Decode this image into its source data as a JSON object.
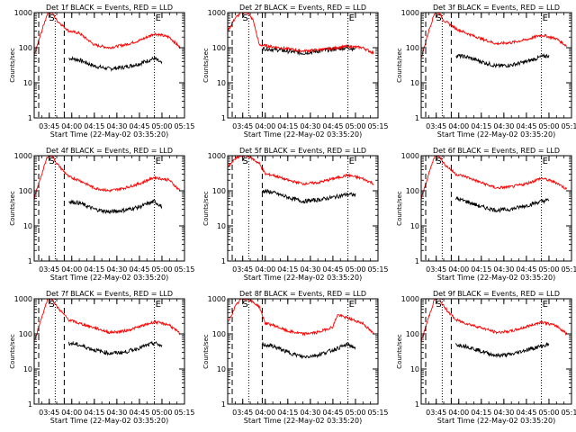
{
  "figure": {
    "panel_title_suffix": "BLACK = Events, RED = LLD",
    "xlabel": "Start Time (22-May-02 03:35:20)",
    "ylabel": "Counts/sec",
    "x_ticks": [
      "03:45",
      "04:00",
      "04:15",
      "04:30",
      "04:45",
      "05:00",
      "05:15"
    ],
    "y_ticks": [
      "1",
      "10",
      "100",
      "1000"
    ],
    "markers": {
      "start": "S",
      "end": "E"
    },
    "colors": {
      "events": "#000000",
      "lld": "#ff0000",
      "axes": "#000000"
    }
  },
  "chart_data": [
    {
      "type": "line",
      "title": "Det 1f BLACK = Events, RED = LLD",
      "detector": "Det 1f",
      "xlabel": "Start Time (22-May-02 03:35:20)",
      "ylabel": "Counts/sec",
      "yscale": "log",
      "xlim": [
        "03:35",
        "05:15"
      ],
      "ylim": [
        1,
        1000
      ],
      "dashed_vlines": [
        "03:38",
        "03:55"
      ],
      "dotted_vlines": [
        "03:49",
        "04:55"
      ],
      "series": [
        {
          "name": "Events",
          "color": "#000000",
          "x": [
            "03:58",
            "04:05",
            "04:15",
            "04:25",
            "04:35",
            "04:45",
            "04:55",
            "05:00"
          ],
          "y": [
            50,
            45,
            30,
            25,
            28,
            35,
            50,
            35
          ]
        },
        {
          "name": "LLD",
          "color": "#ff0000",
          "x": [
            "03:35",
            "03:40",
            "03:44",
            "03:47",
            "03:50",
            "03:58",
            "04:05",
            "04:15",
            "04:25",
            "04:35",
            "04:45",
            "04:55",
            "05:05",
            "05:12"
          ],
          "y": [
            60,
            300,
            1000,
            1000,
            600,
            300,
            260,
            120,
            100,
            120,
            160,
            250,
            200,
            100
          ]
        }
      ]
    },
    {
      "type": "line",
      "title": "Det 2f BLACK = Events, RED = LLD",
      "detector": "Det 2f",
      "xlabel": "Start Time (22-May-02 03:35:20)",
      "ylabel": "Counts/sec",
      "yscale": "log",
      "xlim": [
        "03:35",
        "05:15"
      ],
      "ylim": [
        1,
        1000
      ],
      "dashed_vlines": [
        "03:38",
        "03:58"
      ],
      "dotted_vlines": [
        "03:49",
        "04:55"
      ],
      "series": [
        {
          "name": "Events",
          "color": "#000000",
          "x": [
            "03:58",
            "04:10",
            "04:25",
            "04:40",
            "04:55",
            "05:00"
          ],
          "y": [
            95,
            85,
            70,
            85,
            100,
            90
          ]
        },
        {
          "name": "LLD",
          "color": "#ff0000",
          "x": [
            "03:35",
            "03:40",
            "03:44",
            "03:48",
            "03:52",
            "03:56",
            "04:10",
            "04:25",
            "04:40",
            "04:55",
            "05:05",
            "05:12"
          ],
          "y": [
            300,
            700,
            1000,
            1000,
            600,
            120,
            100,
            80,
            90,
            110,
            100,
            70
          ]
        }
      ]
    },
    {
      "type": "line",
      "title": "Det 3f BLACK = Events, RED = LLD",
      "detector": "Det 3f",
      "xlabel": "Start Time (22-May-02 03:35:20)",
      "ylabel": "Counts/sec",
      "yscale": "log",
      "xlim": [
        "03:35",
        "05:15"
      ],
      "ylim": [
        1,
        1000
      ],
      "dashed_vlines": [
        "03:38",
        "03:55"
      ],
      "dotted_vlines": [
        "03:49",
        "04:55"
      ],
      "series": [
        {
          "name": "Events",
          "color": "#000000",
          "x": [
            "03:58",
            "04:05",
            "04:15",
            "04:25",
            "04:35",
            "04:45",
            "04:55",
            "05:00"
          ],
          "y": [
            60,
            55,
            40,
            30,
            32,
            40,
            55,
            60
          ]
        },
        {
          "name": "LLD",
          "color": "#ff0000",
          "x": [
            "03:35",
            "03:40",
            "03:44",
            "03:47",
            "03:50",
            "03:58",
            "04:05",
            "04:15",
            "04:25",
            "04:35",
            "04:45",
            "04:55",
            "05:05",
            "05:12"
          ],
          "y": [
            50,
            300,
            1000,
            1000,
            600,
            350,
            260,
            180,
            130,
            140,
            170,
            230,
            180,
            110
          ]
        }
      ]
    },
    {
      "type": "line",
      "title": "Det 4f BLACK = Events, RED = LLD",
      "detector": "Det 4f",
      "xlabel": "Start Time (22-May-02 03:35:20)",
      "ylabel": "Counts/sec",
      "yscale": "log",
      "xlim": [
        "03:35",
        "05:15"
      ],
      "ylim": [
        1,
        1000
      ],
      "dashed_vlines": [
        "03:38",
        "03:55"
      ],
      "dotted_vlines": [
        "03:49",
        "04:55"
      ],
      "series": [
        {
          "name": "Events",
          "color": "#000000",
          "x": [
            "03:58",
            "04:05",
            "04:15",
            "04:25",
            "04:35",
            "04:45",
            "04:55",
            "05:00"
          ],
          "y": [
            50,
            45,
            30,
            25,
            28,
            35,
            50,
            35
          ]
        },
        {
          "name": "LLD",
          "color": "#ff0000",
          "x": [
            "03:35",
            "03:40",
            "03:44",
            "03:47",
            "03:50",
            "03:58",
            "04:05",
            "04:15",
            "04:25",
            "04:35",
            "04:45",
            "04:55",
            "05:05",
            "05:12"
          ],
          "y": [
            60,
            300,
            1000,
            1000,
            600,
            250,
            200,
            120,
            100,
            120,
            160,
            240,
            200,
            100
          ]
        }
      ]
    },
    {
      "type": "line",
      "title": "Det 5f BLACK = Events, RED = LLD",
      "detector": "Det 5f",
      "xlabel": "Start Time (22-May-02 03:35:20)",
      "ylabel": "Counts/sec",
      "yscale": "log",
      "xlim": [
        "03:35",
        "05:15"
      ],
      "ylim": [
        1,
        1000
      ],
      "dashed_vlines": [
        "03:38",
        "03:58"
      ],
      "dotted_vlines": [
        "03:49",
        "04:55"
      ],
      "series": [
        {
          "name": "Events",
          "color": "#000000",
          "x": [
            "03:58",
            "04:05",
            "04:15",
            "04:25",
            "04:35",
            "04:45",
            "04:55",
            "05:00"
          ],
          "y": [
            100,
            90,
            65,
            50,
            55,
            65,
            80,
            75
          ]
        },
        {
          "name": "LLD",
          "color": "#ff0000",
          "x": [
            "03:35",
            "03:40",
            "03:44",
            "03:47",
            "03:50",
            "03:56",
            "04:00",
            "04:05",
            "04:15",
            "04:25",
            "04:35",
            "04:45",
            "04:55",
            "05:05",
            "05:12"
          ],
          "y": [
            500,
            800,
            1000,
            1000,
            900,
            600,
            300,
            280,
            200,
            160,
            170,
            220,
            280,
            220,
            160
          ]
        }
      ]
    },
    {
      "type": "line",
      "title": "Det 6f BLACK = Events, RED = LLD",
      "detector": "Det 6f",
      "xlabel": "Start Time (22-May-02 03:35:20)",
      "ylabel": "Counts/sec",
      "yscale": "log",
      "xlim": [
        "03:35",
        "05:15"
      ],
      "ylim": [
        1,
        1000
      ],
      "dashed_vlines": [
        "03:38",
        "03:55"
      ],
      "dotted_vlines": [
        "03:49",
        "04:55"
      ],
      "series": [
        {
          "name": "Events",
          "color": "#000000",
          "x": [
            "03:58",
            "04:05",
            "04:15",
            "04:25",
            "04:35",
            "04:45",
            "04:55",
            "05:00"
          ],
          "y": [
            60,
            50,
            35,
            28,
            30,
            38,
            50,
            55
          ]
        },
        {
          "name": "LLD",
          "color": "#ff0000",
          "x": [
            "03:35",
            "03:40",
            "03:44",
            "03:47",
            "03:50",
            "03:58",
            "04:05",
            "04:15",
            "04:25",
            "04:35",
            "04:45",
            "04:55",
            "05:05",
            "05:12"
          ],
          "y": [
            60,
            300,
            1000,
            1000,
            600,
            300,
            250,
            170,
            120,
            130,
            160,
            230,
            170,
            110
          ]
        }
      ]
    },
    {
      "type": "line",
      "title": "Det 7f BLACK = Events, RED = LLD",
      "detector": "Det 7f",
      "xlabel": "Start Time (22-May-02 03:35:20)",
      "ylabel": "Counts/sec",
      "yscale": "log",
      "xlim": [
        "03:35",
        "05:15"
      ],
      "ylim": [
        1,
        1000
      ],
      "dashed_vlines": [
        "03:38",
        "03:55"
      ],
      "dotted_vlines": [
        "03:49",
        "04:55"
      ],
      "series": [
        {
          "name": "Events",
          "color": "#000000",
          "x": [
            "03:58",
            "04:05",
            "04:15",
            "04:25",
            "04:35",
            "04:45",
            "04:55",
            "05:00"
          ],
          "y": [
            55,
            48,
            35,
            28,
            30,
            40,
            55,
            45
          ]
        },
        {
          "name": "LLD",
          "color": "#ff0000",
          "x": [
            "03:35",
            "03:40",
            "03:44",
            "03:47",
            "03:50",
            "03:58",
            "04:05",
            "04:15",
            "04:25",
            "04:35",
            "04:45",
            "04:55",
            "05:05",
            "05:12"
          ],
          "y": [
            60,
            300,
            1000,
            1000,
            600,
            250,
            200,
            150,
            110,
            120,
            160,
            220,
            180,
            100
          ]
        }
      ]
    },
    {
      "type": "line",
      "title": "Det 8f BLACK = Events, RED = LLD",
      "detector": "Det 8f",
      "xlabel": "Start Time (22-May-02 03:35:20)",
      "ylabel": "Counts/sec",
      "yscale": "log",
      "xlim": [
        "03:35",
        "05:15"
      ],
      "ylim": [
        1,
        1000
      ],
      "dashed_vlines": [
        "03:38",
        "03:58"
      ],
      "dotted_vlines": [
        "03:49",
        "04:55"
      ],
      "series": [
        {
          "name": "Events",
          "color": "#000000",
          "x": [
            "03:58",
            "04:05",
            "04:15",
            "04:25",
            "04:35",
            "04:45",
            "04:55",
            "05:00"
          ],
          "y": [
            50,
            45,
            30,
            22,
            25,
            35,
            50,
            40
          ]
        },
        {
          "name": "LLD",
          "color": "#ff0000",
          "x": [
            "03:35",
            "03:40",
            "03:44",
            "03:47",
            "03:50",
            "03:56",
            "04:00",
            "04:05",
            "04:15",
            "04:25",
            "04:35",
            "04:45",
            "04:48",
            "04:55",
            "05:05",
            "05:12"
          ],
          "y": [
            200,
            600,
            1000,
            1000,
            900,
            600,
            200,
            180,
            120,
            100,
            110,
            160,
            350,
            280,
            200,
            100
          ]
        }
      ]
    },
    {
      "type": "line",
      "title": "Det 9f BLACK = Events, RED = LLD",
      "detector": "Det 9f",
      "xlabel": "Start Time (22-May-02 03:35:20)",
      "ylabel": "Counts/sec",
      "yscale": "log",
      "xlim": [
        "03:35",
        "05:15"
      ],
      "ylim": [
        1,
        1000
      ],
      "dashed_vlines": [
        "03:38",
        "03:55"
      ],
      "dotted_vlines": [
        "03:49",
        "04:55"
      ],
      "series": [
        {
          "name": "Events",
          "color": "#000000",
          "x": [
            "03:58",
            "04:05",
            "04:15",
            "04:25",
            "04:35",
            "04:45",
            "04:55",
            "05:00"
          ],
          "y": [
            50,
            45,
            32,
            24,
            26,
            35,
            45,
            50
          ]
        },
        {
          "name": "LLD",
          "color": "#ff0000",
          "x": [
            "03:35",
            "03:40",
            "03:44",
            "03:47",
            "03:50",
            "03:58",
            "04:05",
            "04:15",
            "04:25",
            "04:35",
            "04:45",
            "04:55",
            "05:05",
            "05:12"
          ],
          "y": [
            60,
            300,
            1000,
            1000,
            600,
            250,
            200,
            150,
            110,
            120,
            160,
            220,
            170,
            100
          ]
        }
      ]
    }
  ]
}
